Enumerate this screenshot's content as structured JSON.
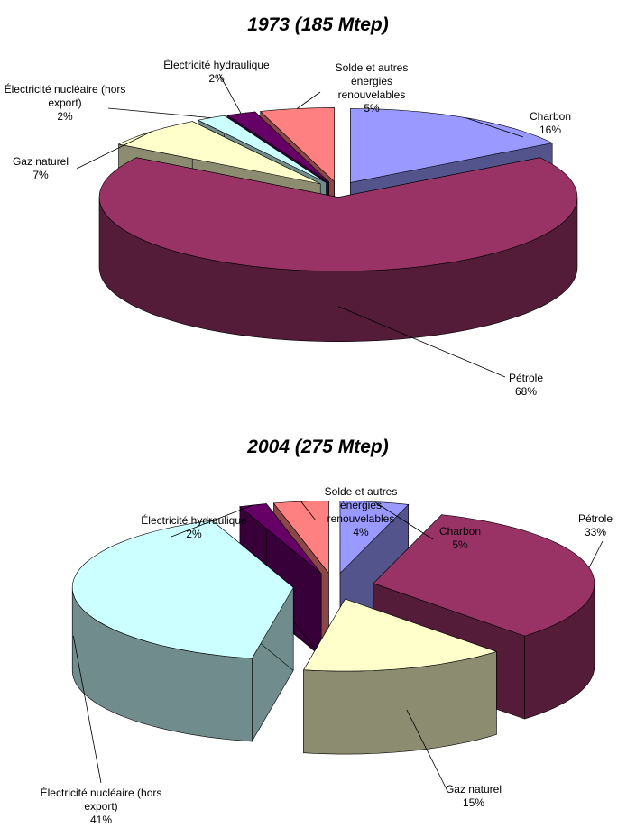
{
  "chart_data": [
    {
      "type": "pie",
      "title": "1973 (185 Mtep)",
      "categories": [
        "Charbon",
        "Pétrole",
        "Gaz naturel",
        "Électricité nucléaire (hors export)",
        "Électricité hydraulique",
        "Solde et autres énergies renouvelables"
      ],
      "values": [
        16,
        68,
        7,
        2,
        2,
        5
      ],
      "value_labels": [
        "16%",
        "68%",
        "7%",
        "2%",
        "2%",
        "5%"
      ],
      "colors": [
        "#9999ff",
        "#993366",
        "#ffffcc",
        "#ccffff",
        "#660066",
        "#ff8080"
      ]
    },
    {
      "type": "pie",
      "title": "2004 (275 Mtep)",
      "categories": [
        "Charbon",
        "Pétrole",
        "Gaz naturel",
        "Électricité nucléaire (hors export)",
        "Électricité hydraulique",
        "Solde et autres énergies renouvelables"
      ],
      "values": [
        5,
        33,
        15,
        41,
        2,
        4
      ],
      "value_labels": [
        "5%",
        "33%",
        "15%",
        "41%",
        "2%",
        "4%"
      ],
      "colors": [
        "#9999ff",
        "#993366",
        "#ffffcc",
        "#ccffff",
        "#660066",
        "#ff8080"
      ]
    }
  ]
}
